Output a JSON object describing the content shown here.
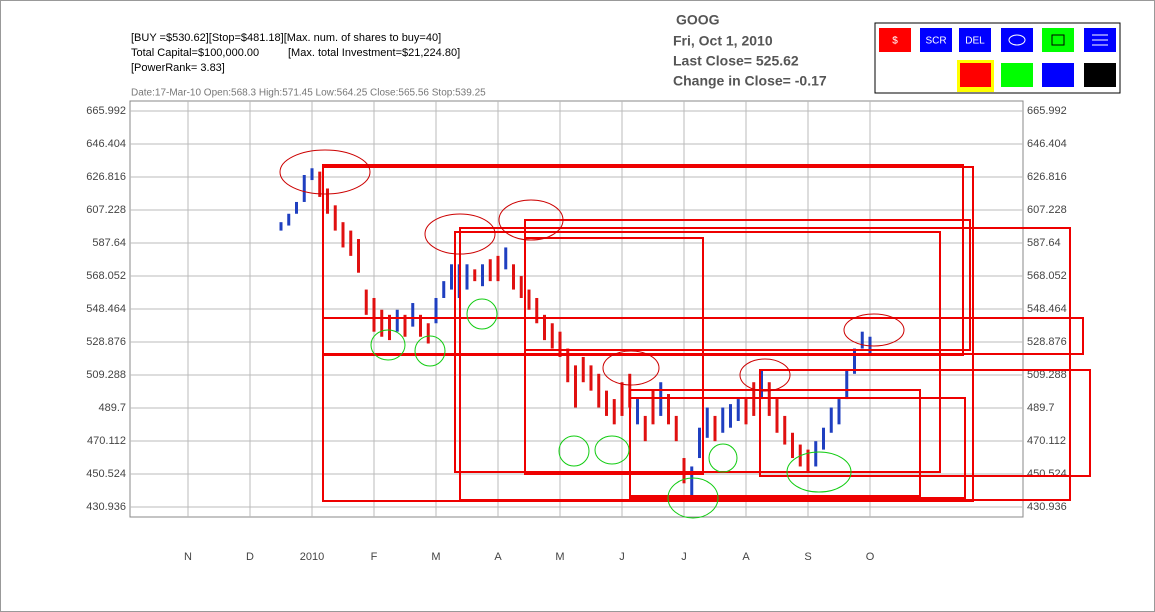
{
  "chart_data": {
    "type": "ohlc",
    "info": [
      "[BUY =$530.62][Stop=$481.18][Max. num. of shares to buy=40]",
      "Total Capital=$100,000.00",
      "[Max. total Investment=$21,224.80]",
      "[PowerRank= 3.83]"
    ],
    "status": "Date:17-Mar-10 Open:568.3 High:571.45 Low:564.25 Close:565.56 Stop:539.25",
    "title": "GOOG",
    "date": "Fri, Oct 1, 2010",
    "last_close": "Last Close=  525.62",
    "change": "Change in Close=  -0.17",
    "buttons": [
      "$",
      "SCR",
      "DEL"
    ],
    "ylim": [
      430.936,
      665.992
    ],
    "yticks": [
      665.992,
      646.404,
      626.816,
      607.228,
      587.64,
      568.052,
      548.464,
      528.876,
      509.288,
      489.7,
      470.112,
      450.524,
      430.936
    ],
    "categories": [
      "N",
      null,
      null,
      null,
      null,
      null,
      null,
      null,
      "D",
      null,
      null,
      null,
      null,
      null,
      null,
      null,
      "2010",
      null,
      null,
      null,
      null,
      null,
      null,
      null,
      "F",
      null,
      null,
      null,
      null,
      null,
      null,
      null,
      "M",
      null,
      null,
      null,
      null,
      null,
      null,
      null,
      "A",
      null,
      null,
      null,
      null,
      null,
      null,
      null,
      "M",
      null,
      null,
      null,
      null,
      null,
      null,
      null,
      "J",
      null,
      null,
      null,
      null,
      null,
      null,
      null,
      "J",
      null,
      null,
      null,
      null,
      null,
      null,
      null,
      "A",
      null,
      null,
      null,
      null,
      null,
      null,
      null,
      "S",
      null,
      null,
      null,
      null,
      null,
      null,
      null,
      "O"
    ],
    "series": [
      {
        "color": "#1f3fc0",
        "high": [
          null,
          null,
          null,
          null,
          null,
          null,
          null,
          null,
          null,
          null,
          null,
          null,
          600,
          605,
          612,
          628,
          632,
          null,
          null,
          null,
          null,
          null,
          null,
          null,
          null,
          null,
          null,
          548,
          null,
          552,
          null,
          null,
          555,
          565,
          575,
          575,
          575,
          null,
          575,
          null,
          null,
          585,
          null,
          null,
          null,
          null,
          null,
          null,
          null,
          null,
          null,
          null,
          null,
          null,
          null,
          null,
          null,
          null,
          495,
          null,
          null,
          505,
          null,
          null,
          null,
          455,
          478,
          490,
          null,
          490,
          492,
          495,
          null,
          null,
          512,
          null,
          null,
          null,
          null,
          null,
          null,
          470,
          478,
          490,
          495,
          512,
          525,
          535,
          532
        ],
        "low": [
          null,
          null,
          null,
          null,
          null,
          null,
          null,
          null,
          null,
          null,
          null,
          null,
          595,
          598,
          605,
          612,
          625,
          null,
          null,
          null,
          null,
          null,
          null,
          null,
          null,
          null,
          null,
          535,
          null,
          538,
          null,
          null,
          540,
          555,
          560,
          555,
          560,
          null,
          562,
          null,
          null,
          572,
          null,
          null,
          null,
          null,
          null,
          null,
          null,
          null,
          null,
          null,
          null,
          null,
          null,
          null,
          null,
          null,
          480,
          null,
          null,
          485,
          null,
          null,
          null,
          436,
          460,
          472,
          null,
          475,
          478,
          482,
          null,
          null,
          495,
          null,
          null,
          null,
          null,
          null,
          null,
          455,
          465,
          475,
          480,
          495,
          510,
          525,
          522
        ]
      },
      {
        "color": "#e01010",
        "high": [
          null,
          null,
          null,
          null,
          null,
          null,
          null,
          null,
          null,
          null,
          null,
          null,
          null,
          null,
          null,
          null,
          null,
          630,
          620,
          610,
          600,
          595,
          590,
          560,
          555,
          548,
          545,
          null,
          545,
          null,
          545,
          540,
          null,
          null,
          null,
          null,
          null,
          572,
          null,
          578,
          580,
          null,
          575,
          568,
          560,
          555,
          545,
          540,
          535,
          525,
          515,
          520,
          515,
          510,
          500,
          495,
          505,
          510,
          null,
          485,
          500,
          null,
          498,
          485,
          460,
          null,
          null,
          null,
          485,
          null,
          null,
          null,
          495,
          505,
          null,
          505,
          495,
          485,
          475,
          468,
          465,
          null,
          null,
          null,
          null,
          null,
          null,
          null,
          null
        ],
        "low": [
          null,
          null,
          null,
          null,
          null,
          null,
          null,
          null,
          null,
          null,
          null,
          null,
          null,
          null,
          null,
          null,
          null,
          615,
          605,
          595,
          585,
          580,
          570,
          545,
          535,
          532,
          530,
          null,
          532,
          null,
          532,
          528,
          null,
          null,
          null,
          null,
          null,
          565,
          null,
          565,
          565,
          null,
          560,
          555,
          548,
          540,
          530,
          525,
          520,
          505,
          490,
          505,
          500,
          490,
          485,
          480,
          485,
          490,
          null,
          470,
          480,
          null,
          480,
          470,
          445,
          null,
          null,
          null,
          470,
          null,
          null,
          null,
          480,
          485,
          null,
          485,
          475,
          468,
          460,
          455,
          452,
          null,
          null,
          null,
          null,
          null,
          null,
          null,
          null
        ]
      }
    ]
  }
}
